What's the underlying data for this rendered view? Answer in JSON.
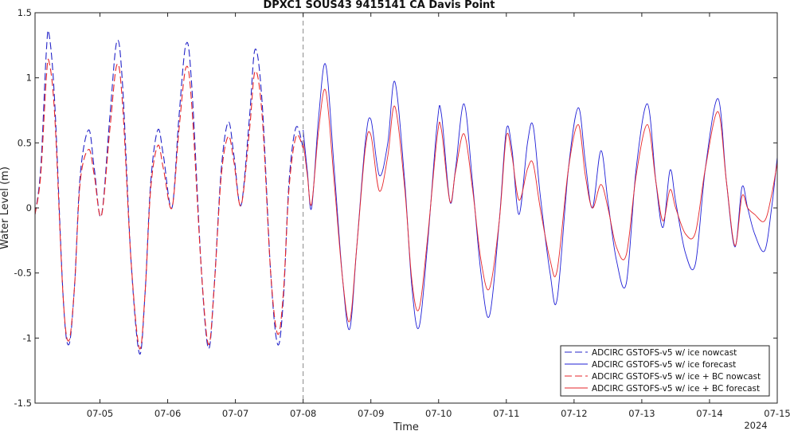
{
  "chart_data": {
    "type": "line",
    "title": "DPXC1 SOUS43 9415141 CA Davis Point",
    "xlabel": "Time",
    "ylabel": "Water Level (m)",
    "year_label": "2024",
    "xlim": [
      "07-04 01:00",
      "07-15 00:00"
    ],
    "ylim": [
      -1.5,
      1.5
    ],
    "yticks": [
      "-1.5",
      "-1",
      "-0.5",
      "0",
      "0.5",
      "1",
      "1.5"
    ],
    "xticks": [
      "07-05",
      "07-06",
      "07-07",
      "07-08",
      "07-09",
      "07-10",
      "07-11",
      "07-12",
      "07-13",
      "07-14",
      "07-15"
    ],
    "nowcast_end": "07-08",
    "grid": false,
    "legend_position": "lower-right",
    "colors": {
      "nowcast_ice": "#1f1fd6",
      "nowcast_ice_bc": "#e6262a"
    },
    "series": [
      {
        "name": "ADCIRC GSTOFS-v5 w/ ice nowcast",
        "color": "#2424c8",
        "style": "dashed",
        "points": [
          [
            "07-04 01:00",
            -0.05
          ],
          [
            "07-04 03:00",
            0.3
          ],
          [
            "07-04 05:00",
            1.2
          ],
          [
            "07-04 06:00",
            1.33
          ],
          [
            "07-04 08:00",
            0.8
          ],
          [
            "07-04 11:00",
            -0.7
          ],
          [
            "07-04 13:00",
            -1.05
          ],
          [
            "07-04 15:00",
            -0.6
          ],
          [
            "07-04 17:00",
            0.25
          ],
          [
            "07-04 20:00",
            0.6
          ],
          [
            "07-04 22:00",
            0.3
          ],
          [
            "07-05 00:30",
            -0.06
          ],
          [
            "07-05 03:30",
            0.7
          ],
          [
            "07-05 06:00",
            1.28
          ],
          [
            "07-05 08:00",
            0.95
          ],
          [
            "07-05 11:00",
            -0.4
          ],
          [
            "07-05 14:00",
            -1.12
          ],
          [
            "07-05 16:00",
            -0.65
          ],
          [
            "07-05 18:00",
            0.2
          ],
          [
            "07-05 20:30",
            0.6
          ],
          [
            "07-05 22:30",
            0.4
          ],
          [
            "07-06 01:30",
            0.0
          ],
          [
            "07-06 04:00",
            0.7
          ],
          [
            "07-06 06:30",
            1.26
          ],
          [
            "07-06 08:30",
            0.95
          ],
          [
            "07-06 12:00",
            -0.5
          ],
          [
            "07-06 14:30",
            -1.08
          ],
          [
            "07-06 16:30",
            -0.6
          ],
          [
            "07-06 19:00",
            0.3
          ],
          [
            "07-06 21:30",
            0.66
          ],
          [
            "07-06 23:30",
            0.4
          ],
          [
            "07-07 02:00",
            0.02
          ],
          [
            "07-07 05:00",
            0.7
          ],
          [
            "07-07 07:00",
            1.22
          ],
          [
            "07-07 09:30",
            0.8
          ],
          [
            "07-07 12:30",
            -0.5
          ],
          [
            "07-07 15:00",
            -1.05
          ],
          [
            "07-07 17:00",
            -0.7
          ],
          [
            "07-07 19:00",
            0.2
          ],
          [
            "07-07 21:30",
            0.62
          ],
          [
            "07-08 00:00",
            0.46
          ]
        ]
      },
      {
        "name": "ADCIRC GSTOFS-v5 w/ ice forecast",
        "color": "#1f1fd6",
        "style": "solid",
        "points": [
          [
            "07-08 00:00",
            0.6
          ],
          [
            "07-08 01:30",
            0.28
          ],
          [
            "07-08 03:00",
            0.0
          ],
          [
            "07-08 05:30",
            0.7
          ],
          [
            "07-08 08:00",
            1.1
          ],
          [
            "07-08 11:00",
            0.3
          ],
          [
            "07-08 14:00",
            -0.55
          ],
          [
            "07-08 16:30",
            -0.93
          ],
          [
            "07-08 19:00",
            -0.3
          ],
          [
            "07-08 22:00",
            0.5
          ],
          [
            "07-09 00:00",
            0.68
          ],
          [
            "07-09 03:00",
            0.25
          ],
          [
            "07-09 06:00",
            0.5
          ],
          [
            "07-09 08:30",
            0.97
          ],
          [
            "07-09 12:00",
            0.2
          ],
          [
            "07-09 14:30",
            -0.6
          ],
          [
            "07-09 17:00",
            -0.92
          ],
          [
            "07-09 20:00",
            -0.3
          ],
          [
            "07-09 23:30",
            0.65
          ],
          [
            "07-10 01:00",
            0.72
          ],
          [
            "07-10 04:00",
            0.05
          ],
          [
            "07-10 06:00",
            0.3
          ],
          [
            "07-10 09:00",
            0.8
          ],
          [
            "07-10 12:00",
            0.2
          ],
          [
            "07-10 15:00",
            -0.5
          ],
          [
            "07-10 18:00",
            -0.83
          ],
          [
            "07-10 21:30",
            -0.1
          ],
          [
            "07-11 00:00",
            0.6
          ],
          [
            "07-11 02:00",
            0.45
          ],
          [
            "07-11 04:30",
            -0.05
          ],
          [
            "07-11 07:30",
            0.5
          ],
          [
            "07-11 09:30",
            0.63
          ],
          [
            "07-11 12:00",
            0.1
          ],
          [
            "07-11 15:30",
            -0.5
          ],
          [
            "07-11 18:00",
            -0.7
          ],
          [
            "07-11 22:00",
            0.3
          ],
          [
            "07-12 01:30",
            0.77
          ],
          [
            "07-12 04:00",
            0.35
          ],
          [
            "07-12 06:30",
            0.0
          ],
          [
            "07-12 09:30",
            0.44
          ],
          [
            "07-12 12:00",
            0.05
          ],
          [
            "07-12 15:00",
            -0.4
          ],
          [
            "07-12 18:30",
            -0.58
          ],
          [
            "07-12 22:00",
            0.3
          ],
          [
            "07-13 02:00",
            0.8
          ],
          [
            "07-13 05:00",
            0.2
          ],
          [
            "07-13 07:30",
            -0.15
          ],
          [
            "07-13 10:00",
            0.29
          ],
          [
            "07-13 12:00",
            0.05
          ],
          [
            "07-13 15:30",
            -0.35
          ],
          [
            "07-13 19:00",
            -0.43
          ],
          [
            "07-13 22:30",
            0.3
          ],
          [
            "07-14 03:00",
            0.84
          ],
          [
            "07-14 06:00",
            0.2
          ],
          [
            "07-14 09:00",
            -0.3
          ],
          [
            "07-14 11:30",
            0.16
          ],
          [
            "07-14 13:30",
            0.0
          ],
          [
            "07-14 16:00",
            -0.2
          ],
          [
            "07-14 19:30",
            -0.33
          ],
          [
            "07-14 22:00",
            0.0
          ],
          [
            "07-15 00:00",
            0.39
          ]
        ]
      },
      {
        "name": "ADCIRC GSTOFS-v5 w/ ice + BC nowcast",
        "color": "#e6262a",
        "style": "dashed",
        "points": [
          [
            "07-04 01:00",
            -0.05
          ],
          [
            "07-04 03:00",
            0.25
          ],
          [
            "07-04 05:00",
            1.0
          ],
          [
            "07-04 06:00",
            1.12
          ],
          [
            "07-04 08:00",
            0.7
          ],
          [
            "07-04 11:00",
            -0.7
          ],
          [
            "07-04 13:00",
            -1.02
          ],
          [
            "07-04 15:00",
            -0.6
          ],
          [
            "07-04 17:00",
            0.2
          ],
          [
            "07-04 20:00",
            0.45
          ],
          [
            "07-04 22:00",
            0.25
          ],
          [
            "07-05 00:30",
            -0.06
          ],
          [
            "07-05 03:30",
            0.6
          ],
          [
            "07-05 06:00",
            1.1
          ],
          [
            "07-05 08:00",
            0.8
          ],
          [
            "07-05 11:00",
            -0.4
          ],
          [
            "07-05 14:00",
            -1.08
          ],
          [
            "07-05 16:00",
            -0.65
          ],
          [
            "07-05 18:00",
            0.15
          ],
          [
            "07-05 20:30",
            0.48
          ],
          [
            "07-05 22:30",
            0.3
          ],
          [
            "07-06 01:30",
            0.0
          ],
          [
            "07-06 04:00",
            0.6
          ],
          [
            "07-06 06:30",
            1.08
          ],
          [
            "07-06 08:30",
            0.8
          ],
          [
            "07-06 12:00",
            -0.5
          ],
          [
            "07-06 14:30",
            -1.05
          ],
          [
            "07-06 16:30",
            -0.6
          ],
          [
            "07-06 19:00",
            0.25
          ],
          [
            "07-06 21:30",
            0.55
          ],
          [
            "07-06 23:30",
            0.35
          ],
          [
            "07-07 02:00",
            0.02
          ],
          [
            "07-07 05:00",
            0.6
          ],
          [
            "07-07 07:00",
            1.05
          ],
          [
            "07-07 09:30",
            0.7
          ],
          [
            "07-07 12:30",
            -0.5
          ],
          [
            "07-07 15:00",
            -0.97
          ],
          [
            "07-07 17:00",
            -0.65
          ],
          [
            "07-07 19:00",
            0.15
          ],
          [
            "07-07 21:30",
            0.55
          ],
          [
            "07-08 00:00",
            0.46
          ]
        ]
      },
      {
        "name": "ADCIRC GSTOFS-v5 w/ ice + BC forecast",
        "color": "#e6262a",
        "style": "solid",
        "points": [
          [
            "07-08 00:00",
            0.52
          ],
          [
            "07-08 01:30",
            0.25
          ],
          [
            "07-08 03:00",
            0.03
          ],
          [
            "07-08 05:30",
            0.6
          ],
          [
            "07-08 08:00",
            0.9
          ],
          [
            "07-08 11:00",
            0.2
          ],
          [
            "07-08 14:00",
            -0.55
          ],
          [
            "07-08 16:30",
            -0.87
          ],
          [
            "07-08 19:00",
            -0.3
          ],
          [
            "07-08 22:00",
            0.45
          ],
          [
            "07-09 00:00",
            0.56
          ],
          [
            "07-09 03:00",
            0.13
          ],
          [
            "07-09 06:00",
            0.4
          ],
          [
            "07-09 08:30",
            0.78
          ],
          [
            "07-09 12:00",
            0.15
          ],
          [
            "07-09 14:30",
            -0.55
          ],
          [
            "07-09 17:00",
            -0.78
          ],
          [
            "07-09 20:00",
            -0.25
          ],
          [
            "07-09 23:30",
            0.55
          ],
          [
            "07-10 01:00",
            0.6
          ],
          [
            "07-10 04:00",
            0.05
          ],
          [
            "07-10 06:00",
            0.28
          ],
          [
            "07-10 09:00",
            0.57
          ],
          [
            "07-10 12:00",
            0.15
          ],
          [
            "07-10 15:00",
            -0.4
          ],
          [
            "07-10 18:00",
            -0.62
          ],
          [
            "07-10 21:30",
            -0.1
          ],
          [
            "07-11 00:00",
            0.55
          ],
          [
            "07-11 02:00",
            0.4
          ],
          [
            "07-11 04:30",
            0.06
          ],
          [
            "07-11 07:30",
            0.3
          ],
          [
            "07-11 09:30",
            0.34
          ],
          [
            "07-11 12:00",
            0.0
          ],
          [
            "07-11 15:30",
            -0.4
          ],
          [
            "07-11 18:00",
            -0.48
          ],
          [
            "07-11 22:00",
            0.3
          ],
          [
            "07-12 01:30",
            0.64
          ],
          [
            "07-12 04:00",
            0.25
          ],
          [
            "07-12 06:30",
            0.0
          ],
          [
            "07-12 09:30",
            0.18
          ],
          [
            "07-12 12:00",
            0.0
          ],
          [
            "07-12 15:00",
            -0.3
          ],
          [
            "07-12 18:30",
            -0.36
          ],
          [
            "07-12 22:00",
            0.25
          ],
          [
            "07-13 02:00",
            0.64
          ],
          [
            "07-13 05:00",
            0.2
          ],
          [
            "07-13 07:30",
            -0.1
          ],
          [
            "07-13 10:00",
            0.14
          ],
          [
            "07-13 12:00",
            0.0
          ],
          [
            "07-13 15:30",
            -0.2
          ],
          [
            "07-13 19:00",
            -0.19
          ],
          [
            "07-13 22:30",
            0.3
          ],
          [
            "07-14 03:00",
            0.74
          ],
          [
            "07-14 06:00",
            0.2
          ],
          [
            "07-14 09:00",
            -0.29
          ],
          [
            "07-14 11:30",
            0.09
          ],
          [
            "07-14 13:30",
            0.0
          ],
          [
            "07-14 16:00",
            -0.05
          ],
          [
            "07-14 19:30",
            -0.1
          ],
          [
            "07-14 22:00",
            0.1
          ],
          [
            "07-15 00:00",
            0.35
          ]
        ]
      }
    ]
  }
}
